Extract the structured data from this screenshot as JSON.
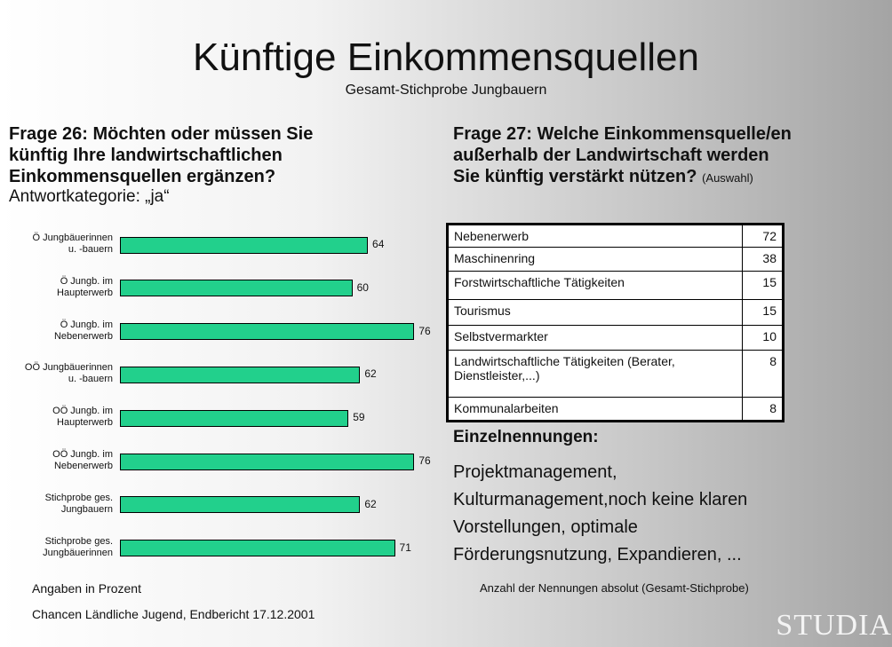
{
  "header": {
    "title": "Künftige Einkommensquellen",
    "subtitle": "Gesamt-Stichprobe Jungbauern"
  },
  "question26": {
    "lines": [
      "Frage 26: Möchten oder müssen Sie",
      "künftig Ihre landwirtschaftlichen",
      "Einkommensquellen ergänzen?"
    ],
    "answer": "Antwortkategorie: „ja“"
  },
  "chart_data": {
    "type": "bar",
    "orientation": "horizontal",
    "color": "#22d08c",
    "categories": [
      "Ö Jungbäuerinnen\nu. -bauern",
      "Ö Jungb. im\nHaupterwerb",
      "Ö Jungb. im\nNebenerwerb",
      "OÖ Jungbäuerinnen\nu. -bauern",
      "OÖ Jungb. im\nHaupterwerb",
      "OÖ Jungb. im\nNebenerwerb",
      "Stichprobe ges.\nJungbauern",
      "Stichprobe ges.\nJungbäuerinnen"
    ],
    "values": [
      64,
      60,
      76,
      62,
      59,
      76,
      62,
      71
    ],
    "note": "Angaben in Prozent"
  },
  "question27": {
    "lines": [
      "Frage 27: Welche Einkommensquelle/en",
      "außerhalb der Landwirtschaft werden",
      "Sie künftig verstärkt nützen?"
    ],
    "suffix": "(Auswahl)"
  },
  "table": {
    "rows": [
      [
        "Nebenerwerb",
        "72"
      ],
      [
        "Maschinenring",
        "38"
      ],
      [
        "Forstwirtschaftliche Tätigkeiten",
        "15"
      ],
      [
        "Tourismus",
        "15"
      ],
      [
        "Selbstvermarkter",
        "10"
      ],
      [
        "Landwirtschaftliche Tätigkeiten (Berater, Dienstleister,...)",
        "8"
      ],
      [
        "Kommunalarbeiten",
        "8"
      ]
    ]
  },
  "single_mentions": {
    "heading": "Einzelnennungen:",
    "lines": [
      "Projektmanagement,",
      "Kulturmanagement,noch keine klaren",
      "Vorstellungen, optimale",
      "Förderungsnutzung, Expandieren, ..."
    ]
  },
  "footer": {
    "table_note": "Anzahl der Nennungen absolut (Gesamt-Stichprobe)",
    "source": "Chancen Ländliche Jugend, Endbericht 17.12.2001",
    "logo": "STUDIA"
  }
}
